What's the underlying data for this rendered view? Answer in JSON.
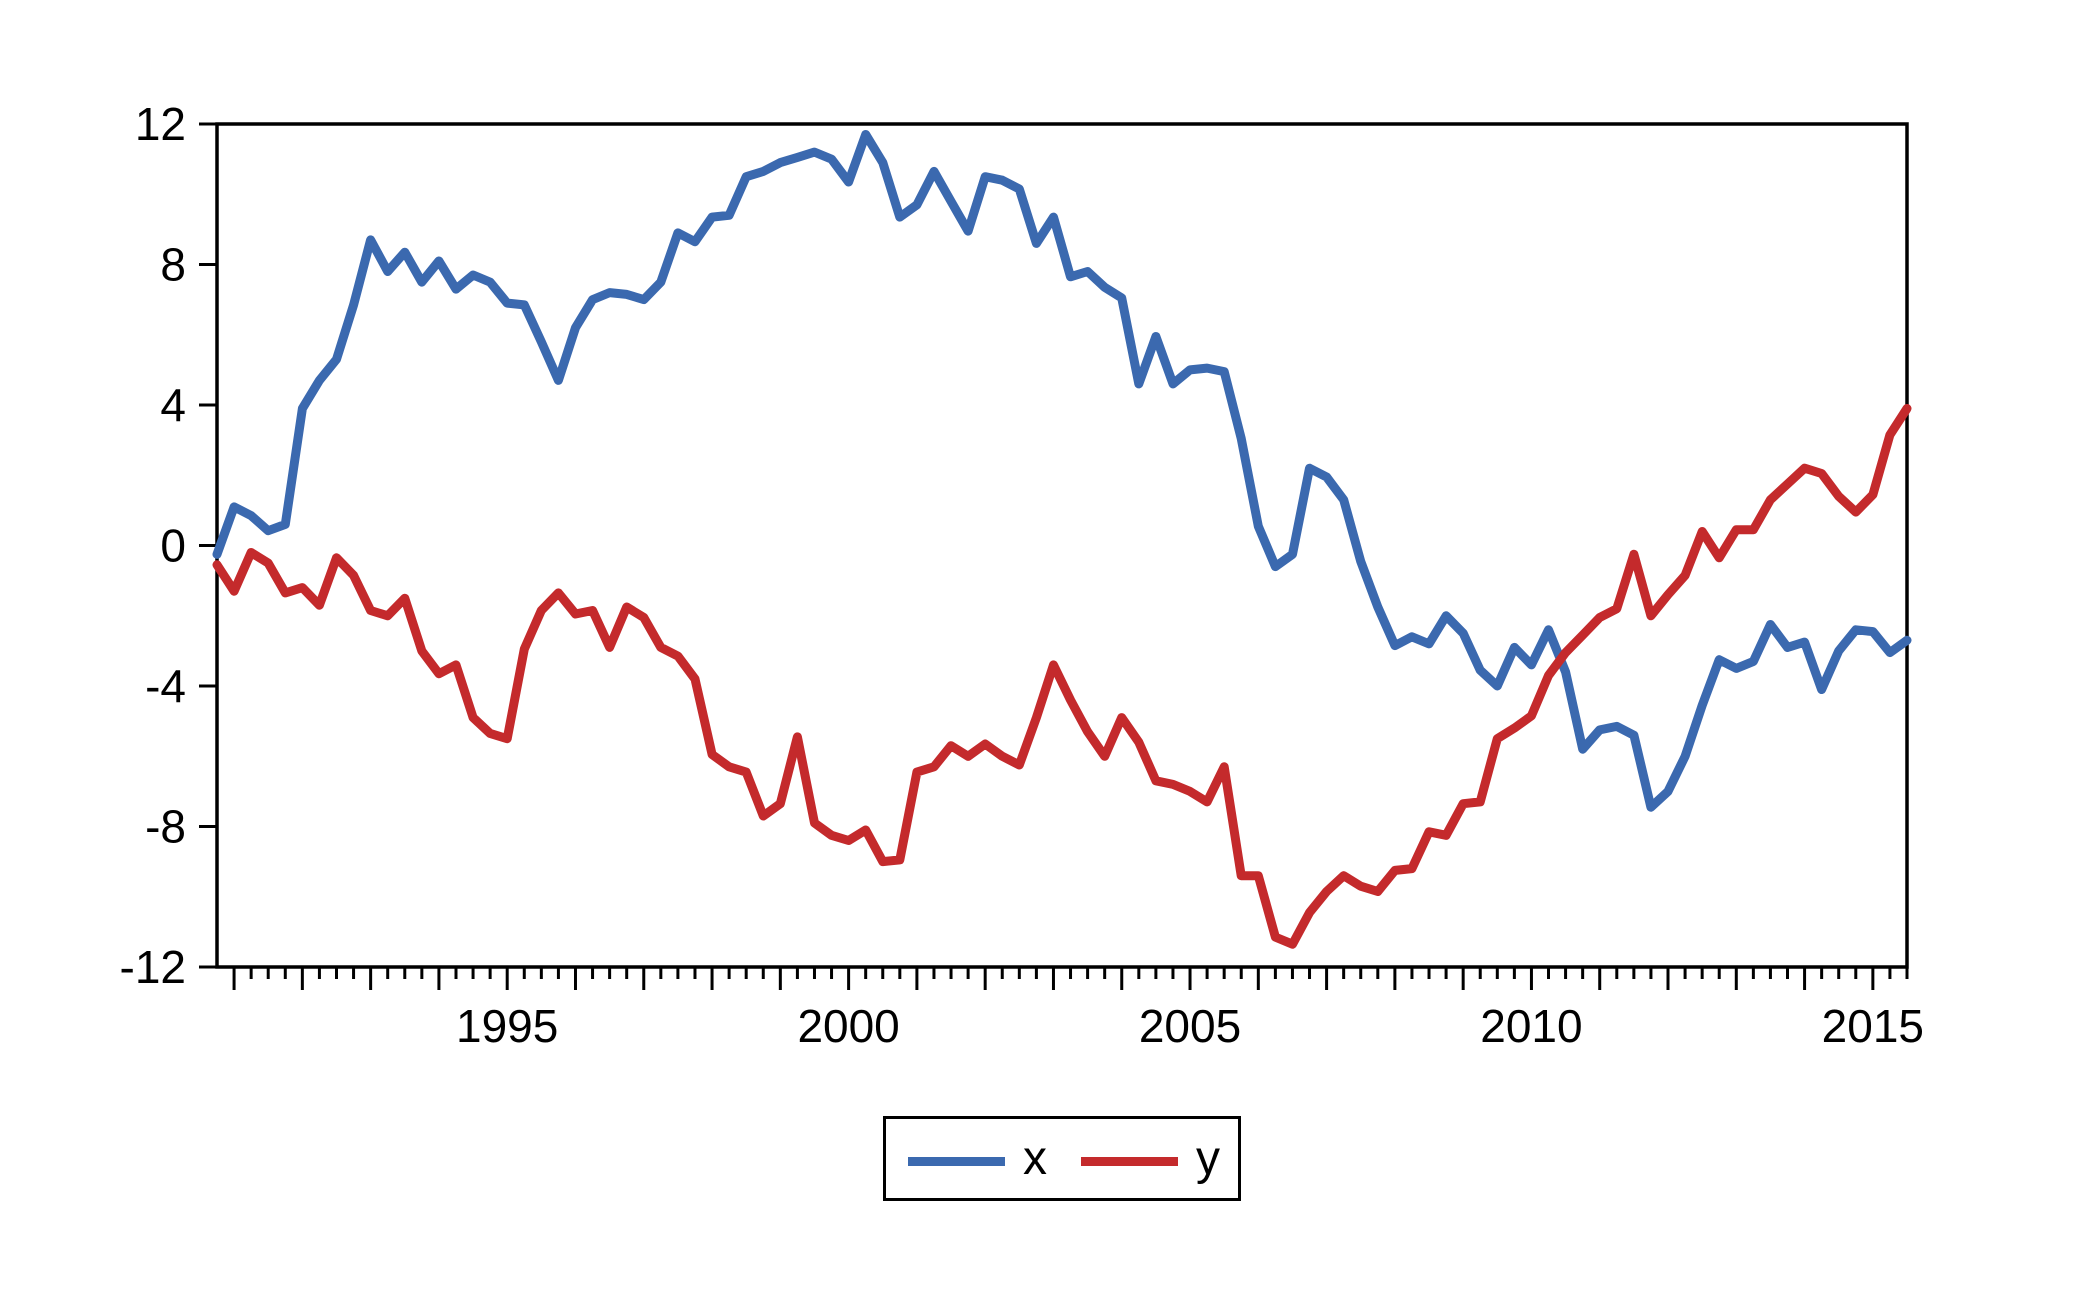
{
  "page": {
    "background_color": "#ffffff",
    "frame_color": "#000000",
    "tick_label_color": "#000000"
  },
  "chart_data": {
    "type": "line",
    "title": "",
    "xlabel": "",
    "ylabel": "",
    "grid": false,
    "frequency": "quarterly",
    "x_start_label": "1990Q4",
    "x_end_label": "2015Q3",
    "x_axis": {
      "min": 1990.75,
      "max": 2015.5,
      "step_per_point": 0.25,
      "minor_tick_interval": 0.25,
      "major_tick_interval": 1,
      "first_major_tick_year": 1991,
      "last_major_tick_year": 2015,
      "label_years": [
        1995,
        2000,
        2005,
        2010,
        2015
      ]
    },
    "y_axis": {
      "min": -12,
      "max": 12,
      "ticks": [
        -12,
        -8,
        -4,
        0,
        4,
        8,
        12
      ]
    },
    "legend": {
      "position": "bottom-center",
      "border_color": "#000000",
      "background": "#ffffff"
    },
    "series": [
      {
        "name": "x",
        "color": "#3B69AF",
        "values": [
          -0.25,
          1.1,
          0.85,
          0.42,
          0.6,
          3.9,
          4.7,
          5.3,
          6.85,
          8.7,
          7.8,
          8.35,
          7.5,
          8.1,
          7.3,
          7.7,
          7.5,
          6.9,
          6.85,
          5.8,
          4.7,
          6.2,
          7.0,
          7.2,
          7.15,
          7.0,
          7.5,
          8.9,
          8.65,
          9.35,
          9.4,
          10.5,
          10.65,
          10.9,
          11.05,
          11.2,
          11.0,
          10.35,
          11.7,
          10.9,
          9.35,
          9.7,
          10.65,
          9.8,
          8.95,
          10.5,
          10.4,
          10.15,
          8.6,
          9.35,
          7.65,
          7.8,
          7.35,
          7.05,
          4.6,
          5.95,
          4.6,
          5.0,
          5.05,
          4.95,
          3.05,
          0.55,
          -0.6,
          -0.25,
          2.2,
          1.95,
          1.3,
          -0.45,
          -1.75,
          -2.85,
          -2.6,
          -2.8,
          -2.0,
          -2.5,
          -3.55,
          -4.0,
          -2.9,
          -3.4,
          -2.4,
          -3.6,
          -5.8,
          -5.25,
          -5.15,
          -5.4,
          -7.45,
          -7.0,
          -6.0,
          -4.55,
          -3.25,
          -3.5,
          -3.3,
          -2.25,
          -2.9,
          -2.75,
          -4.1,
          -3.0,
          -2.4,
          -2.45,
          -3.05,
          -2.7
        ]
      },
      {
        "name": "y",
        "color": "#C42A2C",
        "values": [
          -0.55,
          -1.3,
          -0.2,
          -0.5,
          -1.35,
          -1.2,
          -1.7,
          -0.35,
          -0.85,
          -1.85,
          -2.0,
          -1.5,
          -3.0,
          -3.65,
          -3.4,
          -4.9,
          -5.35,
          -5.5,
          -2.95,
          -1.85,
          -1.35,
          -1.95,
          -1.85,
          -2.9,
          -1.75,
          -2.05,
          -2.9,
          -3.15,
          -3.8,
          -5.95,
          -6.3,
          -6.45,
          -7.7,
          -7.35,
          -5.45,
          -7.9,
          -8.25,
          -8.4,
          -8.1,
          -9.0,
          -8.95,
          -6.45,
          -6.3,
          -5.7,
          -6.0,
          -5.65,
          -6.0,
          -6.25,
          -4.9,
          -3.4,
          -4.4,
          -5.3,
          -6.0,
          -4.9,
          -5.6,
          -6.7,
          -6.8,
          -7.0,
          -7.3,
          -6.3,
          -9.4,
          -9.4,
          -11.15,
          -11.35,
          -10.45,
          -9.85,
          -9.4,
          -9.7,
          -9.85,
          -9.25,
          -9.2,
          -8.15,
          -8.25,
          -7.35,
          -7.3,
          -5.5,
          -5.2,
          -4.85,
          -3.7,
          -3.05,
          -2.55,
          -2.05,
          -1.8,
          -0.25,
          -2.0,
          -1.4,
          -0.85,
          0.4,
          -0.35,
          0.45,
          0.45,
          1.3,
          1.75,
          2.2,
          2.05,
          1.4,
          0.95,
          1.45,
          3.15,
          3.9
        ]
      }
    ]
  }
}
